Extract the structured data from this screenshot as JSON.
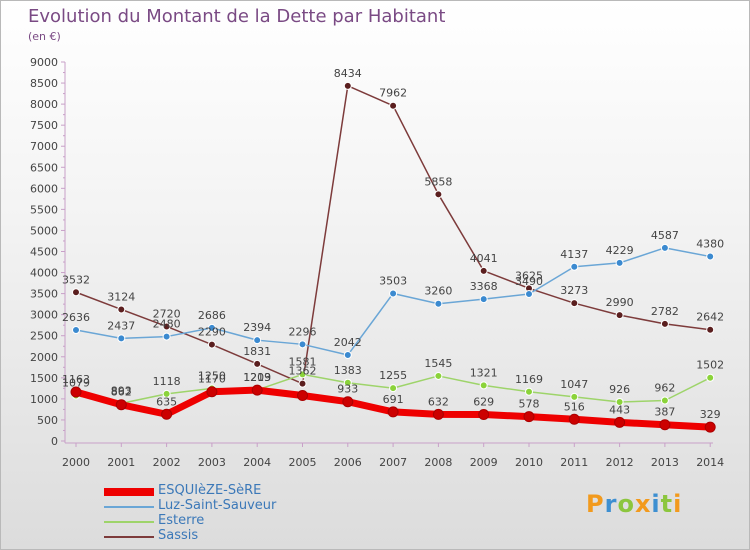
{
  "title": "Evolution du Montant de la Dette par Habitant",
  "subtitle": "(en €)",
  "logo": {
    "text": "Proxiti",
    "letters": [
      {
        "ch": "P",
        "color": "#f29a1d"
      },
      {
        "ch": "r",
        "color": "#3d8fd1"
      },
      {
        "ch": "o",
        "color": "#8cc63e"
      },
      {
        "ch": "x",
        "color": "#f29a1d"
      },
      {
        "ch": "i",
        "color": "#3d8fd1"
      },
      {
        "ch": "t",
        "color": "#8cc63e"
      },
      {
        "ch": "i",
        "color": "#f29a1d"
      }
    ]
  },
  "chart_data": {
    "type": "line",
    "title": "Evolution du Montant de la Dette par Habitant",
    "subtitle": "(en €)",
    "x": [
      "2000",
      "2001",
      "2002",
      "2003",
      "2004",
      "2005",
      "2006",
      "2007",
      "2008",
      "2009",
      "2010",
      "2011",
      "2012",
      "2013",
      "2014"
    ],
    "ylim": [
      0,
      9000
    ],
    "yticks": [
      0,
      500,
      1000,
      1500,
      2000,
      2500,
      3000,
      3500,
      4000,
      4500,
      5000,
      5500,
      6000,
      6500,
      7000,
      7500,
      8000,
      8500,
      9000
    ],
    "grid": false,
    "legend_position": "bottom-left",
    "series": [
      {
        "name": "ESQUIèZE-SèRE",
        "color": "#ee0000",
        "marker": "#cc0000",
        "width": 7,
        "values": [
          1163,
          862,
          635,
          1170,
          1209,
          1080,
          933,
          691,
          632,
          629,
          578,
          516,
          443,
          387,
          329
        ],
        "labels": [
          "1163",
          "862",
          "635",
          "1170",
          "1209",
          "",
          "933",
          "691",
          "632",
          "629",
          "578",
          "516",
          "443",
          "387",
          "329"
        ]
      },
      {
        "name": "Luz-Saint-Sauveur",
        "color": "#6aa6d6",
        "marker": "#3b8ad0",
        "width": 1.5,
        "values": [
          2636,
          2437,
          2480,
          2686,
          2394,
          2296,
          2042,
          3503,
          3260,
          3368,
          3490,
          4137,
          4229,
          4587,
          4380
        ],
        "labels": [
          "2636",
          "2437",
          "2480",
          "2686",
          "2394",
          "2296",
          "2042",
          "3503",
          "3260",
          "3368",
          "3490",
          "4137",
          "4229",
          "4587",
          "4380"
        ]
      },
      {
        "name": "Esterre",
        "color": "#9ed46a",
        "marker": "#8bd33a",
        "width": 1.5,
        "values": [
          1079,
          893,
          1118,
          1250,
          1213,
          1581,
          1383,
          1255,
          1545,
          1321,
          1169,
          1047,
          926,
          962,
          1502
        ],
        "labels": [
          "1079",
          "893",
          "1118",
          "1250",
          "1213",
          "1581",
          "1383",
          "1255",
          "1545",
          "1321",
          "1169",
          "1047",
          "926",
          "962",
          "1502"
        ]
      },
      {
        "name": "Sassis",
        "color": "#7d3b3b",
        "marker": "#5b1f1f",
        "width": 1.5,
        "values": [
          3532,
          3124,
          2720,
          2290,
          1831,
          1362,
          8434,
          7962,
          5858,
          4041,
          3625,
          3273,
          2990,
          2782,
          2642
        ],
        "labels": [
          "3532",
          "3124",
          "2720",
          "2290",
          "1831",
          "1362",
          "8434",
          "7962",
          "5858",
          "4041",
          "3625",
          "3273",
          "2990",
          "2782",
          "2642"
        ]
      }
    ]
  }
}
